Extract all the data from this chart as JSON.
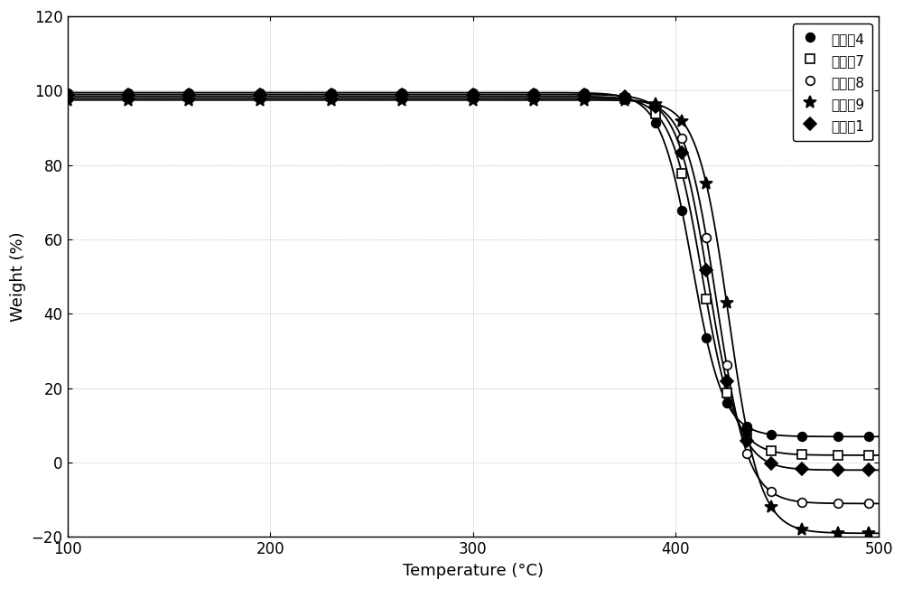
{
  "xlabel": "Temperature (°C)",
  "ylabel": "Weight (%)",
  "xlim": [
    100,
    500
  ],
  "ylim": [
    -20,
    120
  ],
  "xticks": [
    100,
    200,
    300,
    400,
    500
  ],
  "yticks": [
    -20,
    0,
    20,
    40,
    60,
    80,
    100,
    120
  ],
  "series": [
    {
      "label": "实施夈4",
      "marker": "o",
      "filled": true,
      "start": 99.5,
      "final": 7.0,
      "midpoint": 408,
      "steepness": 0.13
    },
    {
      "label": "实施夈7",
      "marker": "s",
      "filled": false,
      "start": 98.5,
      "final": 2.0,
      "midpoint": 413,
      "steepness": 0.13
    },
    {
      "label": "实施夈8",
      "marker": "o",
      "filled": false,
      "start": 98.0,
      "final": -11.0,
      "midpoint": 420,
      "steepness": 0.13
    },
    {
      "label": "实施夈9",
      "marker": "*",
      "filled": true,
      "start": 97.5,
      "final": -19.0,
      "midpoint": 426,
      "steepness": 0.13
    },
    {
      "label": "实施夈1",
      "marker": "D",
      "filled": true,
      "start": 99.0,
      "final": -2.0,
      "midpoint": 416,
      "steepness": 0.13
    }
  ],
  "marker_temps": [
    100,
    130,
    160,
    195,
    230,
    265,
    300,
    330,
    355,
    375,
    390,
    403,
    415,
    425,
    435,
    447,
    462,
    480,
    495
  ],
  "background_color": "#ffffff",
  "legend_loc": "upper right"
}
